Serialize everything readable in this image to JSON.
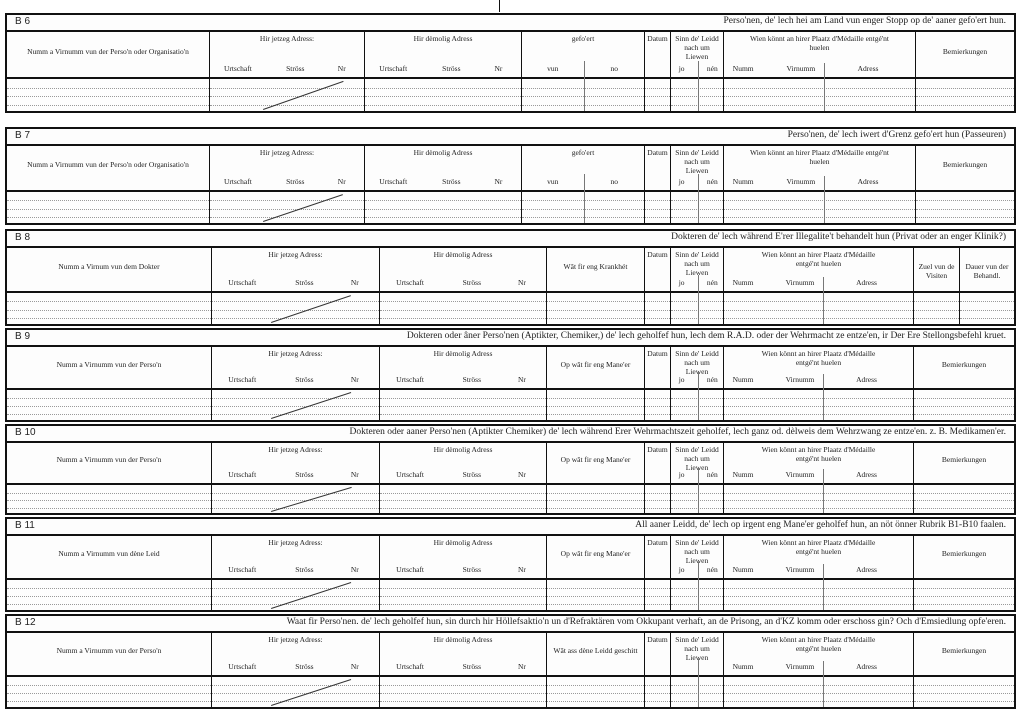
{
  "common": {
    "jetzeg": "Hir jetzeg Adress:",
    "demolig": "Hir dèmolig Adress",
    "addr_subs": [
      "Urtschaft",
      "Ströss",
      "Nr"
    ],
    "gefoert": "gefo'ert",
    "gefoert_subs": [
      "vun",
      "no"
    ],
    "datum": "Datum",
    "sinn": "Sinn de' Leidd nach um Liewen",
    "sinn_subs": [
      "jo",
      "nén"
    ],
    "wien": "Wien könnt an hirer Plaatz d'Médaille entgé'nt huelen",
    "wien_subs": [
      "Numm",
      "Virnumm",
      "Adress"
    ],
    "bemerkungen": "Bemierkungen",
    "zuel": "Zuel vun de Visiten",
    "dauer": "Dauer vun der Behandl."
  },
  "sections": [
    {
      "code": "B 6",
      "title": "Perso'nen, de' lech hei am Land vun enger Stopp op de' aaner gefo'ert hun.",
      "variant": "A",
      "name_label": "Numm a Virnumm vun der Perso'n oder Organisatio'n"
    },
    {
      "code": "B 7",
      "title": "Perso'nen, de' lech iwert d'Grenz gefo'ert hun (Passeuren)",
      "variant": "A",
      "name_label": "Numm a Virnumm vun der Perso'n oder Organisatio'n"
    },
    {
      "code": "B 8",
      "title": "Dokteren de' lech während E'rer Illegalite't behandelt hun (Privat oder an enger Klinik?)",
      "variant": "B",
      "name_label": "Numm a Virnum vun dem Dokter",
      "col4": "Wât fir eng Krankhét"
    },
    {
      "code": "B 9",
      "title": "Dokteren oder âner Perso'nen (Aptikter, Chemiker,) de' lech geholfef hun, lech dem R.A.D. oder der Wehrmacht ze entze'en, ir Der Ere Stellongsbefehl kruet.",
      "variant": "C",
      "name_label": "Numm a Virnumm vun der Perso'n",
      "col4": "Op wât fir eng Mane'er"
    },
    {
      "code": "B 10",
      "title": "Dokteren oder aaner Perso'nen (Aptikter Chemiker) de' lech während Erer Wehrmachtszeit geholfef, lech ganz od. dèlweis dem Wehrzwang ze entze'en. z. B. Medikamen'er.",
      "variant": "C",
      "name_label": "Numm a Virnumm vun der Perso'n",
      "col4": "Op wât fir eng Mane'er"
    },
    {
      "code": "B 11",
      "title": "All aaner Leidd, de' lech op irgent eng Mane'er geholfef hun, an nöt önner Rubrik B1-B10 faalen.",
      "variant": "C",
      "name_label": "Numm a Virnumm vun dène Leid",
      "col4": "Op wât fir eng Mane'er"
    },
    {
      "code": "B 12",
      "title": "Waat fir Perso'nen. de' lech geholfef hun, sin durch hir Höllefsaktio'n un d'Refraktären vom Okkupant verhaft, an de Prisong, an d'KZ komm oder erschoss gin? Och d'Emsiedlung opfe'eren.",
      "variant": "D",
      "name_label": "Numm a Virnumm vun der Perso'n",
      "col4": "Wât ass dène Leidd geschitt"
    }
  ]
}
